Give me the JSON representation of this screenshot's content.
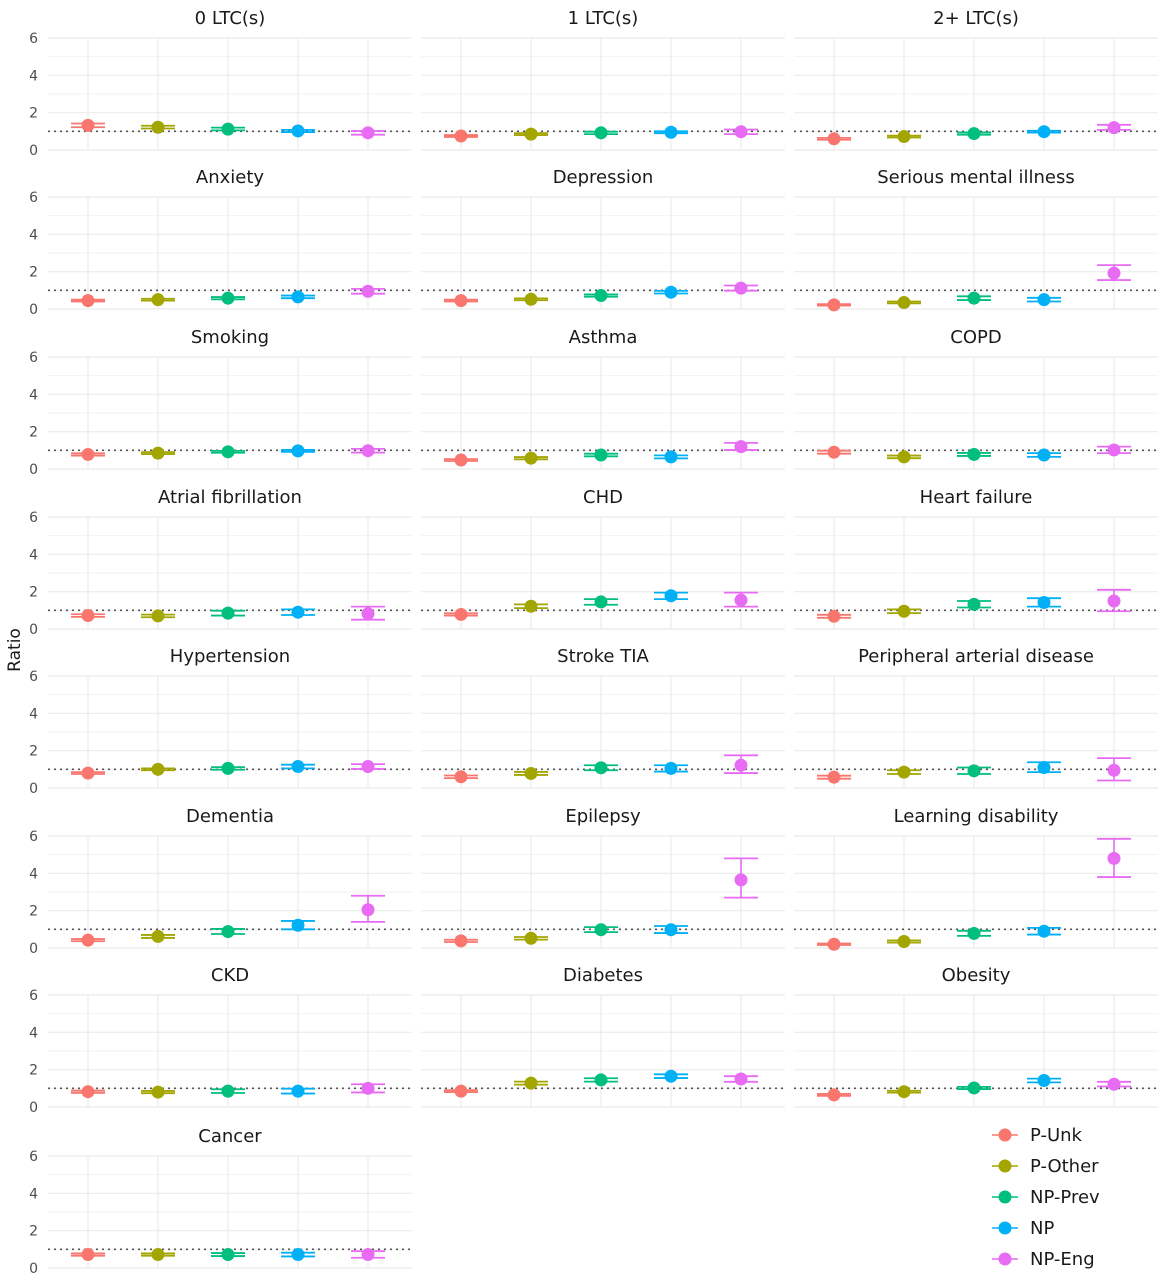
{
  "chart_data": {
    "type": "scatter",
    "subtype": "point-with-error-bars, faceted",
    "ylabel": "Ratio",
    "ylim": [
      0,
      6
    ],
    "yticks": [
      0,
      2,
      4,
      6
    ],
    "reference_line": 1,
    "grid": true,
    "legend_position": "bottom-right",
    "series": [
      {
        "name": "P-Unk",
        "color": "#F8766D"
      },
      {
        "name": "P-Other",
        "color": "#A3A500"
      },
      {
        "name": "NP-Prev",
        "color": "#00BF7D"
      },
      {
        "name": "NP",
        "color": "#00B0F6"
      },
      {
        "name": "NP-Eng",
        "color": "#E76BF3"
      }
    ],
    "facets": [
      {
        "title": "0 LTC(s)",
        "points": [
          [
            1.32,
            1.22,
            1.42
          ],
          [
            1.22,
            1.15,
            1.3
          ],
          [
            1.12,
            1.05,
            1.2
          ],
          [
            1.02,
            0.96,
            1.08
          ],
          [
            0.92,
            0.82,
            1.02
          ]
        ]
      },
      {
        "title": "1 LTC(s)",
        "points": [
          [
            0.75,
            0.7,
            0.8
          ],
          [
            0.85,
            0.8,
            0.9
          ],
          [
            0.92,
            0.85,
            0.98
          ],
          [
            0.95,
            0.9,
            1.0
          ],
          [
            0.98,
            0.85,
            1.1
          ]
        ]
      },
      {
        "title": "2+ LTC(s)",
        "points": [
          [
            0.6,
            0.55,
            0.65
          ],
          [
            0.72,
            0.67,
            0.77
          ],
          [
            0.88,
            0.82,
            0.94
          ],
          [
            0.98,
            0.93,
            1.03
          ],
          [
            1.2,
            1.08,
            1.35
          ]
        ]
      },
      {
        "title": "Anxiety",
        "points": [
          [
            0.45,
            0.4,
            0.5
          ],
          [
            0.5,
            0.45,
            0.55
          ],
          [
            0.58,
            0.52,
            0.64
          ],
          [
            0.65,
            0.58,
            0.72
          ],
          [
            0.95,
            0.82,
            1.08
          ]
        ]
      },
      {
        "title": "Depression",
        "points": [
          [
            0.45,
            0.4,
            0.5
          ],
          [
            0.52,
            0.47,
            0.57
          ],
          [
            0.72,
            0.66,
            0.78
          ],
          [
            0.9,
            0.83,
            0.97
          ],
          [
            1.12,
            0.98,
            1.26
          ]
        ]
      },
      {
        "title": "Serious mental illness",
        "points": [
          [
            0.22,
            0.18,
            0.26
          ],
          [
            0.35,
            0.3,
            0.4
          ],
          [
            0.58,
            0.48,
            0.68
          ],
          [
            0.5,
            0.4,
            0.6
          ],
          [
            1.92,
            1.55,
            2.35
          ]
        ]
      },
      {
        "title": "Smoking",
        "points": [
          [
            0.78,
            0.72,
            0.84
          ],
          [
            0.85,
            0.8,
            0.9
          ],
          [
            0.92,
            0.87,
            0.97
          ],
          [
            0.97,
            0.92,
            1.02
          ],
          [
            0.98,
            0.88,
            1.08
          ]
        ]
      },
      {
        "title": "Asthma",
        "points": [
          [
            0.48,
            0.43,
            0.53
          ],
          [
            0.58,
            0.52,
            0.64
          ],
          [
            0.75,
            0.68,
            0.82
          ],
          [
            0.65,
            0.57,
            0.73
          ],
          [
            1.2,
            1.02,
            1.4
          ]
        ]
      },
      {
        "title": "COPD",
        "points": [
          [
            0.9,
            0.82,
            0.98
          ],
          [
            0.65,
            0.58,
            0.72
          ],
          [
            0.78,
            0.7,
            0.86
          ],
          [
            0.75,
            0.65,
            0.85
          ],
          [
            1.02,
            0.85,
            1.2
          ]
        ]
      },
      {
        "title": "Atrial fibrillation",
        "points": [
          [
            0.72,
            0.65,
            0.79
          ],
          [
            0.7,
            0.63,
            0.77
          ],
          [
            0.85,
            0.72,
            0.98
          ],
          [
            0.9,
            0.75,
            1.05
          ],
          [
            0.82,
            0.5,
            1.2
          ]
        ]
      },
      {
        "title": "CHD",
        "points": [
          [
            0.78,
            0.72,
            0.84
          ],
          [
            1.22,
            1.12,
            1.32
          ],
          [
            1.45,
            1.3,
            1.6
          ],
          [
            1.78,
            1.6,
            1.95
          ],
          [
            1.55,
            1.2,
            1.95
          ]
        ]
      },
      {
        "title": "Heart failure",
        "points": [
          [
            0.68,
            0.6,
            0.76
          ],
          [
            0.95,
            0.85,
            1.05
          ],
          [
            1.32,
            1.15,
            1.5
          ],
          [
            1.42,
            1.2,
            1.65
          ],
          [
            1.5,
            0.95,
            2.1
          ]
        ]
      },
      {
        "title": "Hypertension",
        "points": [
          [
            0.8,
            0.75,
            0.85
          ],
          [
            1.0,
            0.95,
            1.05
          ],
          [
            1.05,
            0.98,
            1.12
          ],
          [
            1.15,
            1.05,
            1.25
          ],
          [
            1.15,
            1.02,
            1.28
          ]
        ]
      },
      {
        "title": "Stroke TIA",
        "points": [
          [
            0.6,
            0.53,
            0.67
          ],
          [
            0.78,
            0.7,
            0.86
          ],
          [
            1.08,
            0.95,
            1.22
          ],
          [
            1.05,
            0.88,
            1.22
          ],
          [
            1.22,
            0.8,
            1.75
          ]
        ]
      },
      {
        "title": "Peripheral arterial disease",
        "points": [
          [
            0.58,
            0.5,
            0.66
          ],
          [
            0.85,
            0.75,
            0.95
          ],
          [
            0.92,
            0.75,
            1.1
          ],
          [
            1.1,
            0.85,
            1.38
          ],
          [
            0.95,
            0.4,
            1.6
          ]
        ]
      },
      {
        "title": "Dementia",
        "points": [
          [
            0.42,
            0.36,
            0.48
          ],
          [
            0.62,
            0.54,
            0.7
          ],
          [
            0.88,
            0.75,
            1.02
          ],
          [
            1.22,
            1.0,
            1.45
          ],
          [
            2.05,
            1.4,
            2.8
          ]
        ]
      },
      {
        "title": "Epilepsy",
        "points": [
          [
            0.38,
            0.32,
            0.44
          ],
          [
            0.52,
            0.45,
            0.59
          ],
          [
            0.98,
            0.85,
            1.12
          ],
          [
            0.98,
            0.8,
            1.18
          ],
          [
            3.65,
            2.7,
            4.8
          ]
        ]
      },
      {
        "title": "Learning disability",
        "points": [
          [
            0.2,
            0.16,
            0.24
          ],
          [
            0.35,
            0.29,
            0.41
          ],
          [
            0.78,
            0.65,
            0.92
          ],
          [
            0.9,
            0.72,
            1.08
          ],
          [
            4.8,
            3.8,
            5.85
          ]
        ]
      },
      {
        "title": "CKD",
        "points": [
          [
            0.82,
            0.76,
            0.88
          ],
          [
            0.8,
            0.74,
            0.86
          ],
          [
            0.85,
            0.75,
            0.95
          ],
          [
            0.85,
            0.72,
            0.98
          ],
          [
            1.0,
            0.78,
            1.22
          ]
        ]
      },
      {
        "title": "Diabetes",
        "points": [
          [
            0.85,
            0.8,
            0.9
          ],
          [
            1.28,
            1.2,
            1.36
          ],
          [
            1.45,
            1.36,
            1.54
          ],
          [
            1.65,
            1.55,
            1.75
          ],
          [
            1.5,
            1.35,
            1.65
          ]
        ]
      },
      {
        "title": "Obesity",
        "points": [
          [
            0.65,
            0.6,
            0.7
          ],
          [
            0.82,
            0.77,
            0.87
          ],
          [
            1.02,
            0.96,
            1.08
          ],
          [
            1.42,
            1.32,
            1.52
          ],
          [
            1.22,
            1.1,
            1.35
          ]
        ]
      },
      {
        "title": "Cancer",
        "points": [
          [
            0.72,
            0.66,
            0.78
          ],
          [
            0.72,
            0.66,
            0.78
          ],
          [
            0.72,
            0.64,
            0.8
          ],
          [
            0.72,
            0.62,
            0.82
          ],
          [
            0.72,
            0.55,
            0.9
          ]
        ]
      }
    ]
  }
}
